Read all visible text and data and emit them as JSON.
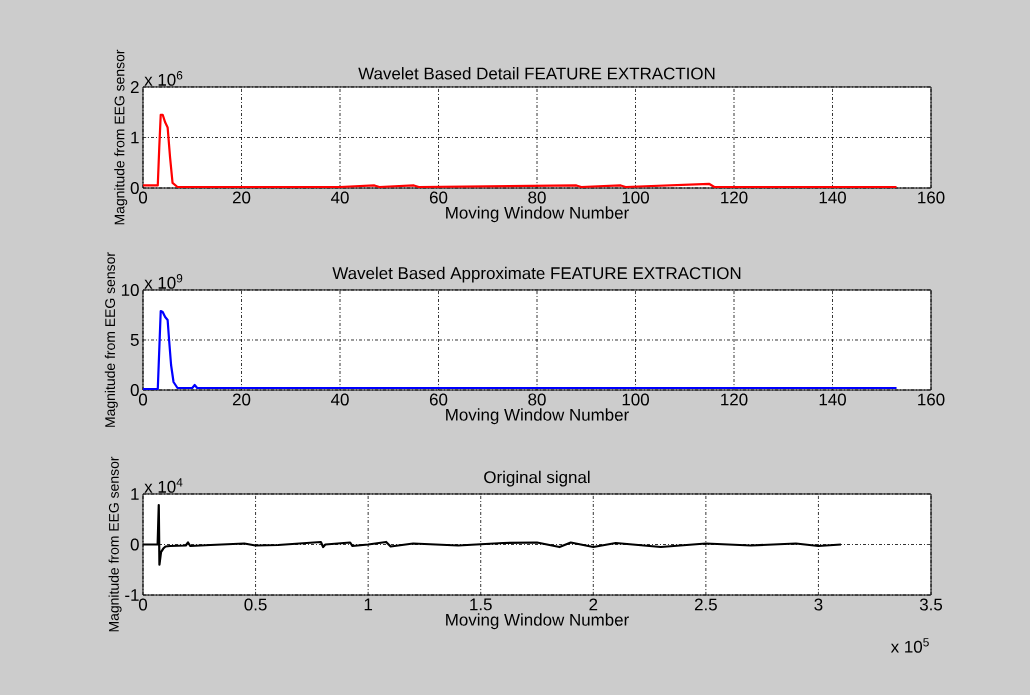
{
  "chart_data": [
    {
      "type": "line",
      "title": "Wavelet Based Detail FEATURE EXTRACTION",
      "xlabel": "Moving Window Number",
      "ylabel": "Magnitude from EEG sensor",
      "annotations": [
        "x 10$^{6}$"
      ],
      "xlim": [
        0,
        160
      ],
      "xticks": [
        0,
        20,
        40,
        60,
        80,
        100,
        120,
        140,
        160
      ],
      "ylim": [
        0,
        2
      ],
      "yticks": [
        0,
        1,
        2
      ],
      "grid": true,
      "marker": "none",
      "line_style": "solid",
      "series": [
        {
          "color": "#ff0000",
          "x": [
            0,
            3,
            3.3,
            3.6,
            4,
            4.5,
            5,
            5.5,
            6,
            7,
            40,
            47,
            48,
            55,
            56,
            88,
            89,
            97,
            98,
            115,
            116,
            153
          ],
          "values": [
            0.05,
            0.05,
            0.8,
            1.45,
            1.45,
            1.3,
            1.2,
            0.6,
            0.1,
            0.02,
            0.02,
            0.05,
            0.02,
            0.05,
            0.02,
            0.05,
            0.02,
            0.05,
            0.02,
            0.08,
            0.02,
            0.02
          ]
        }
      ]
    },
    {
      "type": "line",
      "title": "Wavelet Based Approximate FEATURE EXTRACTION",
      "xlabel": "Moving Window Number",
      "ylabel": "Magnitude from EEG sensor",
      "annotations": [
        "x 10$^{9}$"
      ],
      "xlim": [
        0,
        160
      ],
      "xticks": [
        0,
        20,
        40,
        60,
        80,
        100,
        120,
        140,
        160
      ],
      "ylim": [
        0,
        10
      ],
      "yticks": [
        0,
        5,
        10
      ],
      "grid": true,
      "marker": "none",
      "line_style": "solid",
      "series": [
        {
          "color": "#0000ff",
          "x": [
            0,
            3,
            3.3,
            3.6,
            4,
            4.5,
            5,
            5.3,
            5.7,
            6.2,
            7,
            10,
            10.5,
            11,
            153
          ],
          "values": [
            0.1,
            0.1,
            4,
            7.9,
            7.8,
            7.3,
            7,
            5,
            2.5,
            0.8,
            0.2,
            0.2,
            0.5,
            0.2,
            0.2
          ]
        }
      ]
    },
    {
      "type": "line",
      "title": "Original signal",
      "xlabel": "Moving Window Number",
      "ylabel": "Magnitude from EEG sensor",
      "annotations": [
        "x 10$^{4}$",
        "x 10$^{5}$"
      ],
      "xlim": [
        0,
        3.5
      ],
      "xticks": [
        0,
        0.5,
        1,
        1.5,
        2,
        2.5,
        3,
        3.5
      ],
      "ylim": [
        -1,
        1
      ],
      "yticks": [
        -1,
        0,
        1
      ],
      "grid": true,
      "marker": "none",
      "line_style": "solid",
      "series": [
        {
          "color": "#000000",
          "x": [
            0,
            0.065,
            0.07,
            0.073,
            0.08,
            0.09,
            0.1,
            0.12,
            0.19,
            0.2,
            0.21,
            0.3,
            0.45,
            0.5,
            0.6,
            0.79,
            0.8,
            0.81,
            0.92,
            0.93,
            1,
            1.08,
            1.1,
            1.2,
            1.4,
            1.6,
            1.75,
            1.85,
            1.9,
            2,
            2.1,
            2.3,
            2.5,
            2.7,
            2.9,
            3,
            3.1
          ],
          "values": [
            0,
            0,
            0.78,
            -0.4,
            -0.15,
            -0.08,
            -0.04,
            -0.03,
            -0.02,
            0.04,
            -0.03,
            -0.01,
            0.02,
            -0.02,
            -0.01,
            0.05,
            -0.05,
            0,
            0.04,
            -0.03,
            0,
            0.05,
            -0.04,
            0.02,
            -0.02,
            0.03,
            0.04,
            -0.05,
            0.04,
            -0.05,
            0.03,
            -0.05,
            0.02,
            -0.02,
            0.02,
            -0.03,
            0
          ]
        }
      ]
    }
  ]
}
